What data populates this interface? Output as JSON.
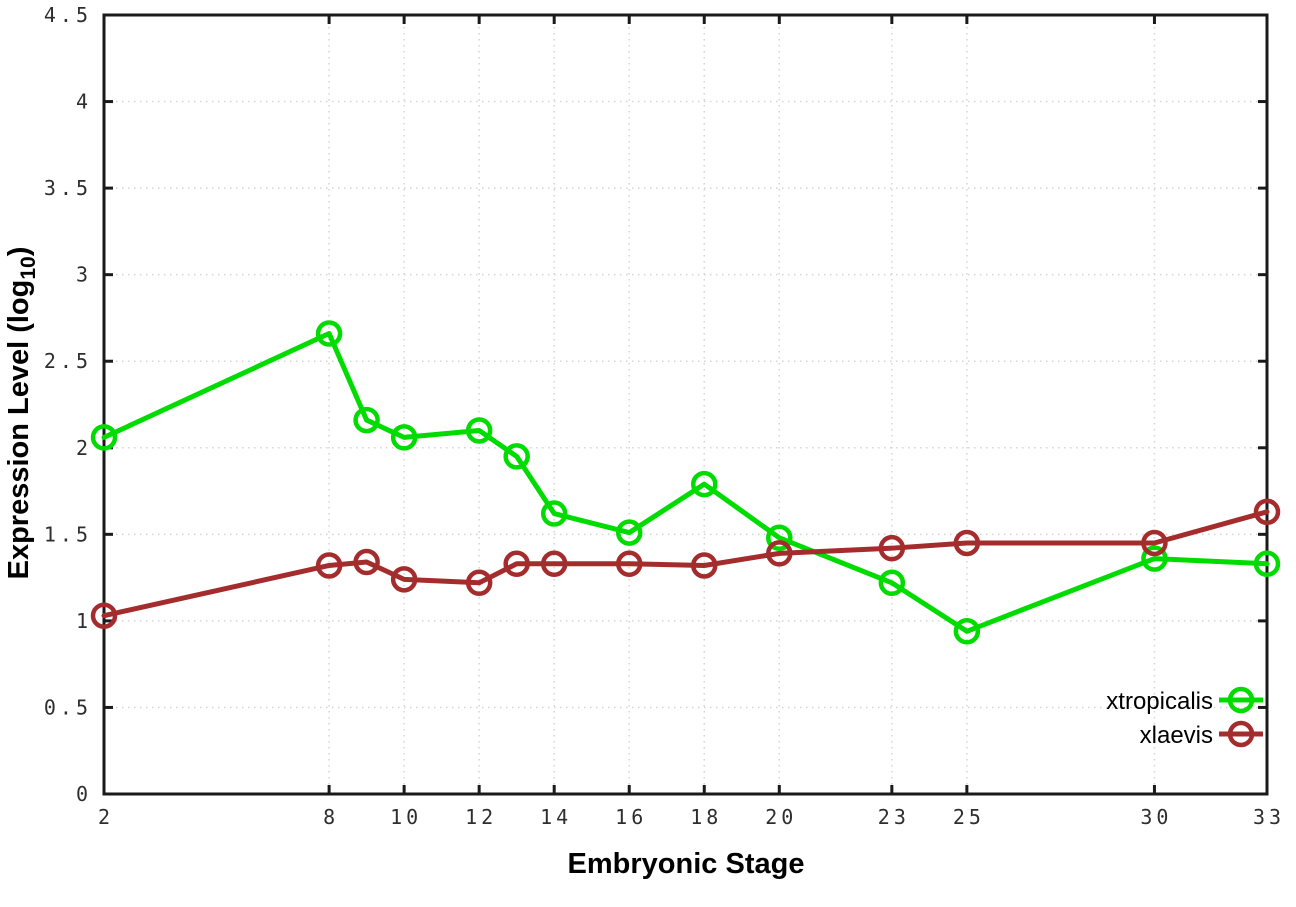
{
  "figure": {
    "background": "#ffffff",
    "border_color": "#1a1a1a",
    "grid_color": "#d4d4d4",
    "tick_label_color": "#2e2e2e"
  },
  "chart_data": {
    "type": "line",
    "title": "",
    "xlabel": "Embryonic Stage",
    "ylabel": "Expression Level (log10)",
    "ylabel_parts": {
      "pre": "Expression Level (log",
      "sub": "10",
      "post": ")"
    },
    "xlim": [
      2,
      33
    ],
    "ylim": [
      0,
      4.5
    ],
    "grid": true,
    "legend_position": "bottom-right",
    "x": [
      2,
      8,
      9,
      10,
      12,
      13,
      14,
      16,
      18,
      20,
      23,
      25,
      30,
      33
    ],
    "xtick_values": [
      2,
      8,
      10,
      12,
      14,
      16,
      18,
      20,
      23,
      25,
      30,
      33
    ],
    "xtick_labels": [
      "2",
      "8",
      "10",
      "12",
      "14",
      "16",
      "18",
      "20",
      "23",
      "25",
      "30",
      "33"
    ],
    "ytick_values": [
      0,
      0.5,
      1,
      1.5,
      2,
      2.5,
      3,
      3.5,
      4,
      4.5
    ],
    "ytick_labels": [
      "0",
      "0.5",
      "1",
      "1.5",
      "2",
      "2.5",
      "3",
      "3.5",
      "4",
      "4.5"
    ],
    "series": [
      {
        "name": "xtropicalis",
        "color": "#00dc00",
        "marker": "open-circle",
        "values": [
          2.06,
          2.66,
          2.16,
          2.06,
          2.1,
          1.95,
          1.62,
          1.51,
          1.79,
          1.48,
          1.22,
          0.94,
          1.36,
          1.33
        ]
      },
      {
        "name": "xlaevis",
        "color": "#a52c2c",
        "marker": "open-circle",
        "values": [
          1.03,
          1.32,
          1.34,
          1.24,
          1.22,
          1.33,
          1.33,
          1.33,
          1.32,
          1.39,
          1.42,
          1.45,
          1.45,
          1.63
        ]
      }
    ]
  }
}
